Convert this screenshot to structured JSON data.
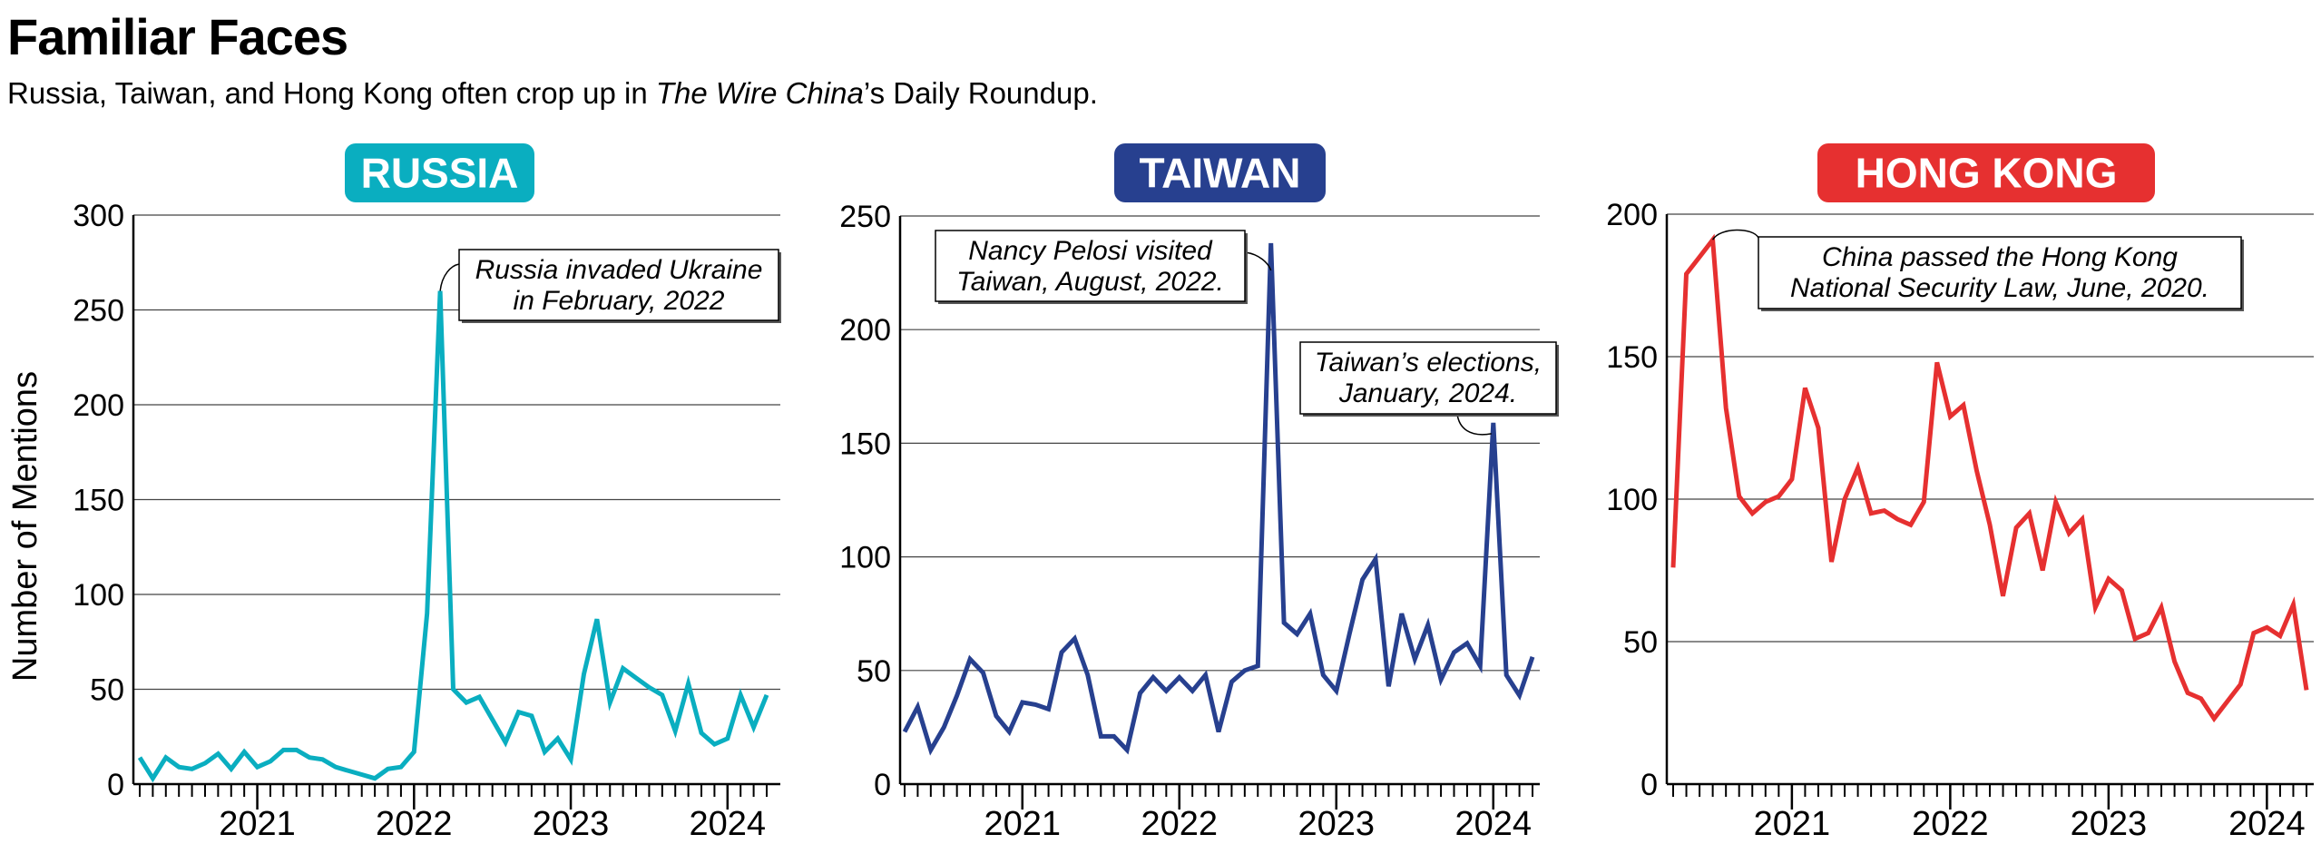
{
  "header": {
    "title": "Familiar Faces",
    "subtitle_pre": "Russia, Taiwan, and Hong Kong often crop up in ",
    "subtitle_em": "The Wire China",
    "subtitle_post": "’s Daily Roundup."
  },
  "chart_data": [
    {
      "type": "line",
      "title": "RUSSIA",
      "color": "#0aaec0",
      "ylabel": "Number of Mentions",
      "xlabel": "",
      "x_start": "2020-04",
      "x_end": "2024-04",
      "x_ticks": [
        "2021",
        "2022",
        "2023",
        "2024"
      ],
      "ylim": [
        0,
        300
      ],
      "y_ticks": [
        0,
        50,
        100,
        150,
        200,
        250,
        300
      ],
      "grid": true,
      "values": [
        14,
        3,
        14,
        9,
        8,
        11,
        16,
        8,
        17,
        9,
        12,
        18,
        18,
        14,
        13,
        9,
        7,
        5,
        3,
        8,
        9,
        17,
        90,
        260,
        50,
        43,
        46,
        34,
        22,
        38,
        36,
        17,
        24,
        13,
        58,
        87,
        43,
        61,
        56,
        51,
        47,
        28,
        53,
        27,
        21,
        24,
        47,
        30,
        47
      ],
      "annotations": [
        {
          "lines": [
            "Russia invaded Ukraine",
            "in February, 2022"
          ],
          "point_index": 23
        }
      ]
    },
    {
      "type": "line",
      "title": "TAIWAN",
      "color": "#27408f",
      "x_start": "2020-04",
      "x_end": "2024-04",
      "x_ticks": [
        "2021",
        "2022",
        "2023",
        "2024"
      ],
      "ylim": [
        0,
        250
      ],
      "y_ticks": [
        0,
        50,
        100,
        150,
        200,
        250
      ],
      "grid": true,
      "values": [
        23,
        34,
        15,
        25,
        39,
        55,
        49,
        30,
        23,
        36,
        35,
        33,
        58,
        64,
        48,
        21,
        21,
        15,
        40,
        47,
        41,
        47,
        41,
        48,
        23,
        45,
        50,
        52,
        238,
        71,
        66,
        75,
        48,
        41,
        66,
        90,
        99,
        43,
        75,
        55,
        70,
        46,
        58,
        62,
        52,
        159,
        48,
        39,
        56
      ],
      "annotations": [
        {
          "lines": [
            "Nancy Pelosi visited",
            "Taiwan, August, 2022."
          ],
          "point_index": 28
        },
        {
          "lines": [
            "Taiwan’s elections,",
            "January, 2024."
          ],
          "point_index": 45
        }
      ]
    },
    {
      "type": "line",
      "title": "HONG KONG",
      "color": "#e63030",
      "x_start": "2020-04",
      "x_end": "2024-04",
      "x_ticks": [
        "2021",
        "2022",
        "2023",
        "2024"
      ],
      "ylim": [
        0,
        200
      ],
      "y_ticks": [
        0,
        50,
        100,
        150,
        200
      ],
      "grid": true,
      "values": [
        76,
        179,
        185,
        191,
        132,
        101,
        95,
        99,
        101,
        107,
        139,
        125,
        78,
        100,
        111,
        95,
        96,
        93,
        91,
        99,
        148,
        129,
        133,
        110,
        91,
        66,
        90,
        95,
        75,
        99,
        88,
        93,
        62,
        72,
        68,
        51,
        53,
        62,
        43,
        32,
        30,
        23,
        29,
        35,
        53,
        55,
        52,
        63,
        33
      ],
      "annotations": [
        {
          "lines": [
            "China passed the Hong Kong",
            "National Security Law, June, 2020."
          ],
          "point_index": 3
        }
      ]
    }
  ]
}
